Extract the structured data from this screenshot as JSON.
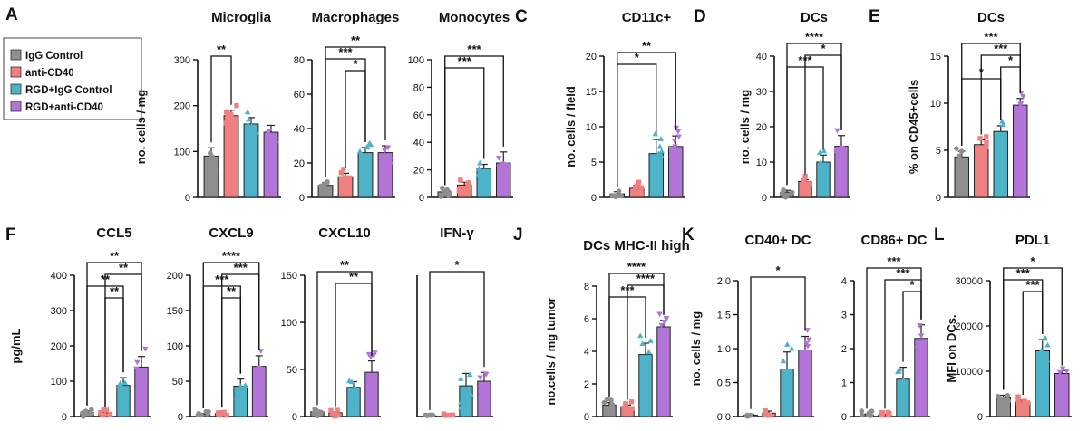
{
  "colors": {
    "IgG Control": "#8f8f8f",
    "anti-CD40": "#f08080",
    "RGD+IgG Control": "#4db3c8",
    "RGD+anti-CD40": "#b274d6"
  },
  "legend": [
    "IgG Control",
    "anti-CD40",
    "RGD+IgG Control",
    "RGD+anti-CD40"
  ],
  "panel_labels": [
    "A",
    "C",
    "D",
    "E",
    "F",
    "J",
    "K",
    "L"
  ],
  "chart_data": [
    {
      "id": "microglia",
      "type": "bar",
      "title": "Microglia",
      "ylabel": "no. cells / mg",
      "ylim": [
        0,
        300
      ],
      "yticks": [
        "0",
        "100",
        "200",
        "300"
      ],
      "categories": [
        "IgG Control",
        "anti-CD40",
        "RGD+IgG Control",
        "RGD+anti-CD40"
      ],
      "values": [
        90,
        178,
        160,
        142
      ],
      "errors": [
        18,
        12,
        14,
        15
      ],
      "sig": [
        {
          "a": 0,
          "b": 1,
          "label": "**"
        }
      ]
    },
    {
      "id": "macrophages",
      "type": "bar",
      "title": "Macrophages",
      "ylabel": "",
      "ylim": [
        0,
        80
      ],
      "yticks": [
        "0",
        "20",
        "40",
        "60",
        "80"
      ],
      "categories": [
        "IgG Control",
        "anti-CD40",
        "RGD+IgG Control",
        "RGD+anti-CD40"
      ],
      "values": [
        7,
        12,
        26,
        26
      ],
      "errors": [
        1.5,
        2,
        3,
        4
      ],
      "sig": [
        {
          "a": 0,
          "b": 3,
          "label": "**"
        },
        {
          "a": 0,
          "b": 2,
          "label": "***"
        },
        {
          "a": 1,
          "b": 2,
          "label": "*"
        }
      ]
    },
    {
      "id": "monocytes",
      "type": "bar",
      "title": "Monocytes",
      "ylabel": "",
      "ylim": [
        0,
        100
      ],
      "yticks": [
        "0",
        "20",
        "40",
        "60",
        "80",
        "100"
      ],
      "categories": [
        "IgG Control",
        "anti-CD40",
        "RGD+IgG Control",
        "RGD+anti-CD40"
      ],
      "values": [
        4,
        9,
        21,
        25
      ],
      "errors": [
        1,
        2,
        3,
        8
      ],
      "sig": [
        {
          "a": 0,
          "b": 3,
          "label": "***"
        },
        {
          "a": 0,
          "b": 2,
          "label": "***"
        }
      ]
    },
    {
      "id": "cd11c",
      "type": "bar",
      "title": "CD11c+",
      "ylabel": "no. cells / field",
      "ylim": [
        0,
        20
      ],
      "yticks": [
        "0",
        "5",
        "10",
        "15",
        "20"
      ],
      "categories": [
        "IgG Control",
        "anti-CD40",
        "RGD+IgG Control",
        "RGD+anti-CD40"
      ],
      "values": [
        0.5,
        1.3,
        6.2,
        7.2
      ],
      "errors": [
        0.3,
        0.4,
        2,
        1.5
      ],
      "sig": [
        {
          "a": 0,
          "b": 3,
          "label": "**"
        },
        {
          "a": 0,
          "b": 2,
          "label": "*"
        }
      ]
    },
    {
      "id": "dcs_mg",
      "type": "bar",
      "title": "DCs",
      "ylabel": "no. cells / mg",
      "ylim": [
        0,
        40
      ],
      "yticks": [
        "0",
        "10",
        "20",
        "30",
        "40"
      ],
      "categories": [
        "IgG Control",
        "anti-CD40",
        "RGD+IgG Control",
        "RGD+anti-CD40"
      ],
      "values": [
        1.5,
        4.5,
        10,
        14.5
      ],
      "errors": [
        0.5,
        0.5,
        2,
        3
      ],
      "sig": [
        {
          "a": 0,
          "b": 3,
          "label": "****"
        },
        {
          "a": 1,
          "b": 3,
          "label": "*"
        },
        {
          "a": 0,
          "b": 2,
          "label": "***"
        }
      ]
    },
    {
      "id": "dcs_pct",
      "type": "bar",
      "title": "DCs",
      "ylabel": "% on CD45+cells",
      "ylim": [
        0,
        15
      ],
      "yticks": [
        "0",
        "5",
        "10",
        "15"
      ],
      "categories": [
        "IgG Control",
        "anti-CD40",
        "RGD+IgG Control",
        "RGD+anti-CD40"
      ],
      "values": [
        4.3,
        5.6,
        7.0,
        9.8
      ],
      "errors": [
        0.6,
        0.5,
        0.6,
        0.7
      ],
      "sig": [
        {
          "a": 0,
          "b": 3,
          "label": "***"
        },
        {
          "a": 1,
          "b": 3,
          "label": "***"
        },
        {
          "a": 2,
          "b": 3,
          "label": "*"
        },
        {
          "a": 0,
          "b": 2,
          "label": "*"
        }
      ]
    },
    {
      "id": "ccl5",
      "type": "bar",
      "title": "CCL5",
      "ylabel": "pg/mL",
      "ylim": [
        0,
        400
      ],
      "yticks": [
        "0",
        "100",
        "200",
        "300",
        "400"
      ],
      "categories": [
        "IgG Control",
        "anti-CD40",
        "RGD+IgG Control",
        "RGD+anti-CD40"
      ],
      "values": [
        12,
        10,
        88,
        140
      ],
      "errors": [
        4,
        3,
        22,
        30
      ],
      "sig": [
        {
          "a": 0,
          "b": 3,
          "label": "**"
        },
        {
          "a": 1,
          "b": 3,
          "label": "**"
        },
        {
          "a": 0,
          "b": 2,
          "label": "**"
        },
        {
          "a": 1,
          "b": 2,
          "label": "**"
        }
      ]
    },
    {
      "id": "cxcl9",
      "type": "bar",
      "title": "CXCL9",
      "ylabel": "",
      "ylim": [
        0,
        200
      ],
      "yticks": [
        "0",
        "50",
        "100",
        "150",
        "200"
      ],
      "categories": [
        "IgG Control",
        "anti-CD40",
        "RGD+IgG Control",
        "RGD+anti-CD40"
      ],
      "values": [
        3,
        4,
        43,
        71
      ],
      "errors": [
        1,
        1,
        10,
        15
      ],
      "sig": [
        {
          "a": 0,
          "b": 3,
          "label": "****"
        },
        {
          "a": 1,
          "b": 3,
          "label": "***"
        },
        {
          "a": 0,
          "b": 2,
          "label": "***"
        },
        {
          "a": 1,
          "b": 2,
          "label": "**"
        }
      ]
    },
    {
      "id": "cxcl10",
      "type": "bar",
      "title": "CXCL10",
      "ylabel": "",
      "ylim": [
        0,
        150
      ],
      "yticks": [
        "0",
        "50",
        "100",
        "150"
      ],
      "categories": [
        "IgG Control",
        "anti-CD40",
        "RGD+IgG Control",
        "RGD+anti-CD40"
      ],
      "values": [
        5,
        4,
        31,
        47
      ],
      "errors": [
        1.5,
        1,
        6,
        12
      ],
      "sig": [
        {
          "a": 0,
          "b": 3,
          "label": "**"
        },
        {
          "a": 1,
          "b": 3,
          "label": "**"
        }
      ]
    },
    {
      "id": "ifng",
      "type": "bar",
      "title": "IFN-γ",
      "ylabel": "",
      "ylim": [
        0,
        400
      ],
      "yticks": [],
      "categories": [
        "IgG Control",
        "anti-CD40",
        "RGD+IgG Control",
        "RGD+anti-CD40"
      ],
      "values": [
        2,
        1,
        87,
        100
      ],
      "errors": [
        1,
        1,
        35,
        25
      ],
      "sig": [
        {
          "a": 0,
          "b": 3,
          "label": "*"
        }
      ]
    },
    {
      "id": "mhc2",
      "type": "bar",
      "title": "DCs MHC-II high",
      "ylabel": "no.cells / mg tumor",
      "ylim": [
        0,
        8
      ],
      "yticks": [
        "0",
        "2",
        "4",
        "6",
        "8"
      ],
      "categories": [
        "IgG Control",
        "anti-CD40",
        "RGD+IgG Control",
        "RGD+anti-CD40"
      ],
      "values": [
        0.7,
        0.6,
        3.8,
        5.5
      ],
      "errors": [
        0.15,
        0.1,
        0.7,
        0.4
      ],
      "sig": [
        {
          "a": 0,
          "b": 3,
          "label": "****"
        },
        {
          "a": 1,
          "b": 3,
          "label": "****"
        },
        {
          "a": 0,
          "b": 2,
          "label": "***"
        }
      ]
    },
    {
      "id": "cd40dc",
      "type": "bar",
      "title": "CD40+ DC",
      "ylabel": "no. cells / mg",
      "ylim": [
        0,
        2
      ],
      "yticks": [
        "0.0",
        "0.5",
        "1.0",
        "1.5",
        "2.0"
      ],
      "categories": [
        "IgG Control",
        "anti-CD40",
        "RGD+IgG Control",
        "RGD+anti-CD40"
      ],
      "values": [
        0.02,
        0.05,
        0.7,
        0.98
      ],
      "errors": [
        0.01,
        0.03,
        0.25,
        0.2
      ],
      "sig": [
        {
          "a": 0,
          "b": 3,
          "label": "*"
        }
      ]
    },
    {
      "id": "cd86dc",
      "type": "bar",
      "title": "CD86+ DC",
      "ylabel": "",
      "ylim": [
        0,
        4
      ],
      "yticks": [
        "0",
        "1",
        "2",
        "3",
        "4"
      ],
      "categories": [
        "IgG Control",
        "anti-CD40",
        "RGD+IgG Control",
        "RGD+anti-CD40"
      ],
      "values": [
        0.05,
        0.05,
        1.1,
        2.3
      ],
      "errors": [
        0.02,
        0.02,
        0.35,
        0.4
      ],
      "sig": [
        {
          "a": 0,
          "b": 3,
          "label": "***"
        },
        {
          "a": 1,
          "b": 3,
          "label": "***"
        },
        {
          "a": 2,
          "b": 3,
          "label": "*"
        }
      ]
    },
    {
      "id": "pdl1",
      "type": "bar",
      "title": "PDL1",
      "ylabel": "MFI on DCs.",
      "ylim": [
        0,
        30000
      ],
      "yticks": [
        "0",
        "10000",
        "20000",
        "30000"
      ],
      "categories": [
        "IgG Control",
        "anti-CD40",
        "RGD+IgG Control",
        "RGD+anti-CD40"
      ],
      "values": [
        4200,
        3200,
        14500,
        9500
      ],
      "errors": [
        500,
        400,
        2500,
        600
      ],
      "sig": [
        {
          "a": 0,
          "b": 3,
          "label": "*"
        },
        {
          "a": 0,
          "b": 2,
          "label": "***"
        },
        {
          "a": 1,
          "b": 2,
          "label": "***"
        }
      ]
    }
  ]
}
